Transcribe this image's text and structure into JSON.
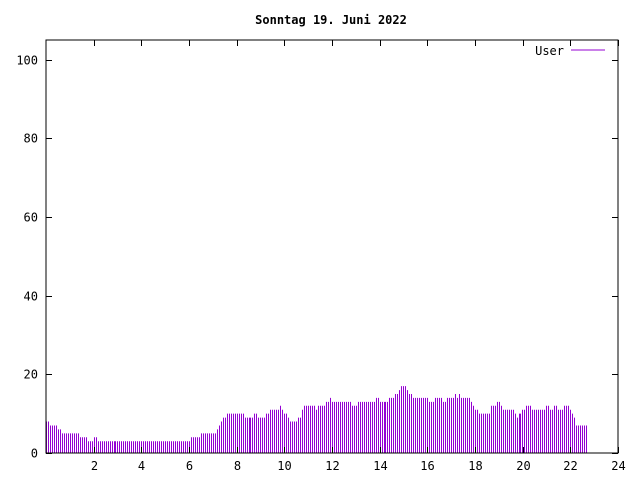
{
  "chart_data": {
    "type": "bar",
    "title": "Sonntag 19. Juni 2022",
    "xlabel": "",
    "ylabel": "",
    "xlim": [
      0,
      24
    ],
    "ylim": [
      0,
      105
    ],
    "x_ticks": [
      2,
      4,
      6,
      8,
      10,
      12,
      14,
      16,
      18,
      20,
      22,
      24
    ],
    "y_ticks": [
      0,
      20,
      40,
      60,
      80,
      100
    ],
    "grid": false,
    "legend_position": "top-right",
    "series_color": "#9400d3",
    "series": [
      {
        "name": "User",
        "x_start": 0,
        "x_step": 0.0833,
        "values": [
          8,
          8,
          7,
          7,
          7,
          7,
          6,
          6,
          5,
          5,
          5,
          5,
          5,
          5,
          5,
          5,
          5,
          4,
          4,
          4,
          4,
          3,
          3,
          3,
          4,
          4,
          3,
          3,
          3,
          3,
          3,
          3,
          3,
          3,
          3,
          3,
          3,
          3,
          3,
          3,
          3,
          3,
          3,
          3,
          3,
          3,
          3,
          3,
          3,
          3,
          3,
          3,
          3,
          3,
          3,
          3,
          3,
          3,
          3,
          3,
          3,
          3,
          3,
          3,
          3,
          3,
          3,
          3,
          3,
          3,
          3,
          3,
          3,
          4,
          4,
          4,
          4,
          4,
          5,
          5,
          5,
          5,
          5,
          5,
          5,
          5,
          6,
          7,
          8,
          9,
          9,
          10,
          10,
          10,
          10,
          10,
          10,
          10,
          10,
          10,
          9,
          9,
          9,
          9,
          9,
          10,
          10,
          9,
          9,
          9,
          9,
          10,
          10,
          11,
          11,
          11,
          11,
          11,
          12,
          11,
          10,
          10,
          9,
          8,
          8,
          8,
          8,
          9,
          9,
          11,
          12,
          12,
          12,
          12,
          12,
          12,
          11,
          12,
          12,
          12,
          12,
          13,
          13,
          14,
          13,
          13,
          13,
          13,
          13,
          13,
          13,
          13,
          13,
          13,
          12,
          12,
          12,
          13,
          13,
          13,
          13,
          13,
          13,
          13,
          13,
          13,
          14,
          14,
          13,
          13,
          13,
          13,
          13,
          14,
          14,
          14,
          15,
          15,
          16,
          17,
          17,
          17,
          16,
          15,
          15,
          14,
          14,
          14,
          14,
          14,
          14,
          14,
          14,
          13,
          13,
          13,
          14,
          14,
          14,
          14,
          13,
          13,
          14,
          14,
          14,
          14,
          15,
          14,
          15,
          14,
          14,
          14,
          14,
          14,
          13,
          12,
          11,
          11,
          10,
          10,
          10,
          10,
          10,
          10,
          12,
          12,
          12,
          13,
          13,
          12,
          11,
          11,
          11,
          11,
          11,
          11,
          10,
          9,
          10,
          10,
          11,
          11,
          12,
          12,
          12,
          11,
          11,
          11,
          11,
          11,
          11,
          11,
          12,
          12,
          11,
          11,
          12,
          12,
          11,
          11,
          11,
          12,
          12,
          12,
          11,
          10,
          9,
          7,
          7,
          7,
          7,
          7,
          7
        ]
      }
    ]
  }
}
